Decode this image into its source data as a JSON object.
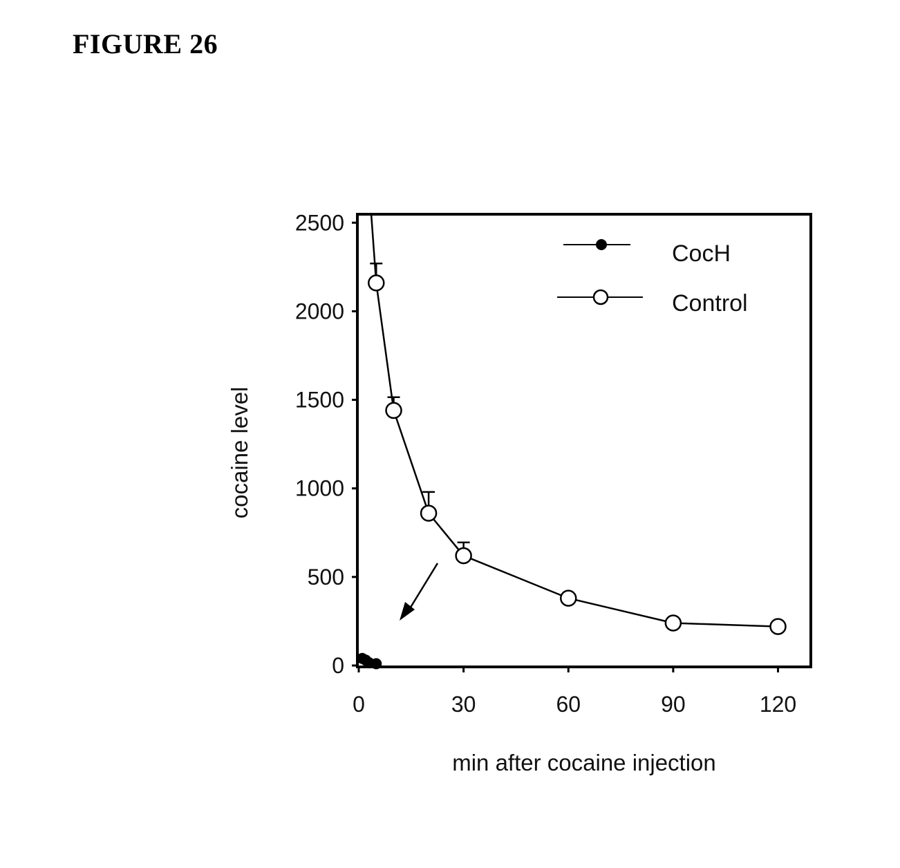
{
  "figure_label": "FIGURE 26",
  "chart_data": {
    "type": "line",
    "xlabel": "min after cocaine injection",
    "ylabel": "cocaine level",
    "xlim": [
      0,
      130
    ],
    "ylim": [
      0,
      2500
    ],
    "xticks": [
      0,
      30,
      60,
      90,
      120
    ],
    "yticks": [
      0,
      500,
      1000,
      1500,
      2000,
      2500
    ],
    "legend_position": "top-right",
    "grid": false,
    "series": [
      {
        "name": "CocH",
        "marker": "filled-circle",
        "color": "#000000",
        "x": [
          1,
          2,
          3,
          5
        ],
        "y": [
          40,
          30,
          15,
          10
        ]
      },
      {
        "name": "Control",
        "marker": "open-circle",
        "color": "#000000",
        "x": [
          5,
          10,
          20,
          30,
          60,
          90,
          120
        ],
        "y": [
          2160,
          1440,
          860,
          620,
          380,
          240,
          220
        ],
        "error_plus": [
          110,
          75,
          120,
          75,
          0,
          0,
          0
        ]
      }
    ]
  }
}
